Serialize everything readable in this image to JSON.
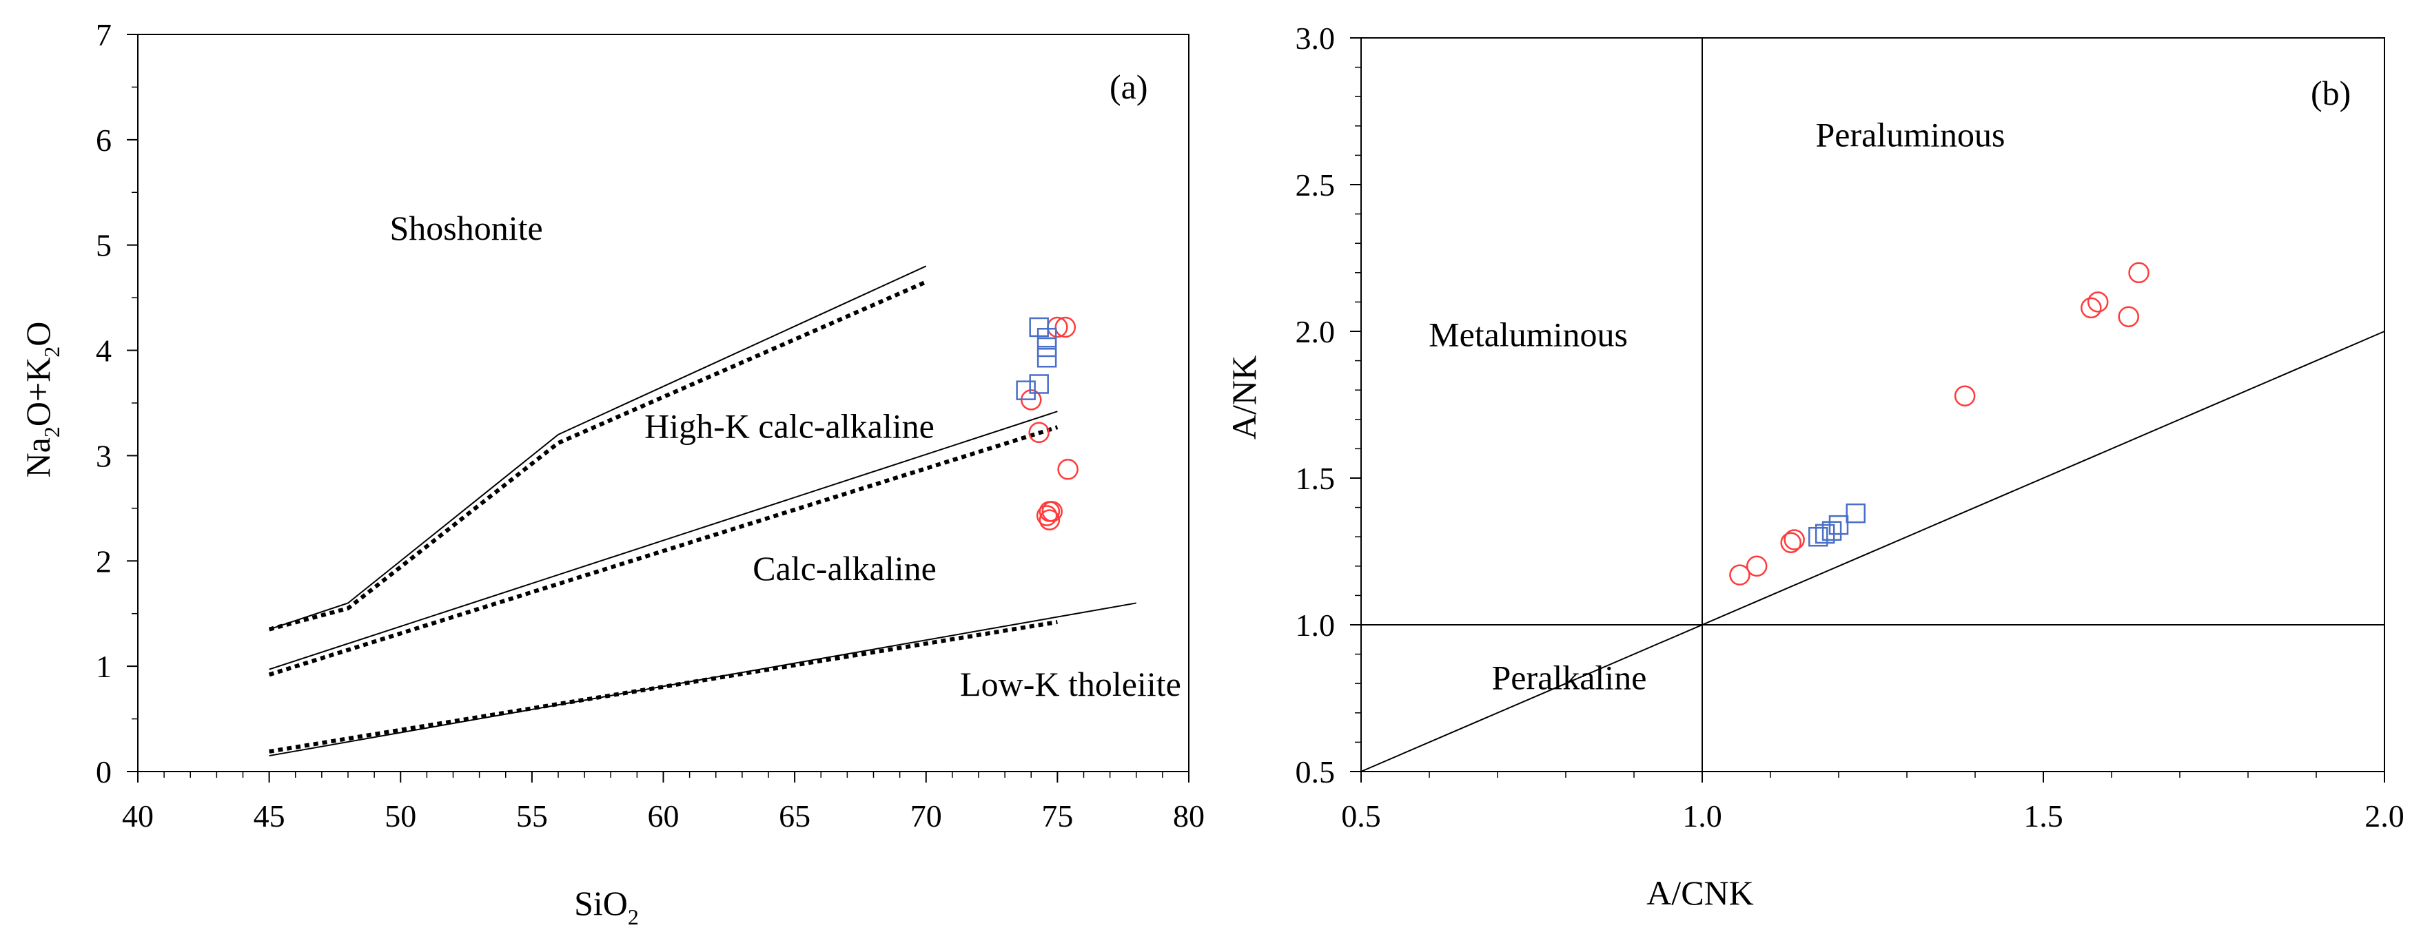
{
  "colors": {
    "axis": "#000000",
    "circle_series": "#ff3b3b",
    "square_series": "#4a6fc7"
  },
  "chart_data": [
    {
      "type": "scatter",
      "panel": "(a)",
      "xlabel": "SiO",
      "xlabel_sub": "2",
      "ylabel_parts": [
        "Na",
        "2",
        "O+K",
        "2",
        "O"
      ],
      "xlim": [
        40,
        80
      ],
      "ylim": [
        0,
        7
      ],
      "xticks": [
        40,
        45,
        50,
        55,
        60,
        65,
        70,
        75,
        80
      ],
      "yticks": [
        0,
        1,
        2,
        3,
        4,
        5,
        6,
        7
      ],
      "tick_labels_x": [
        "40",
        "45",
        "50",
        "55",
        "60",
        "65",
        "70",
        "75",
        "80"
      ],
      "tick_labels_y": [
        "0",
        "1",
        "2",
        "3",
        "4",
        "5",
        "6",
        "7"
      ],
      "grid": false,
      "region_labels": [
        {
          "text": "Shoshonite",
          "x": 52.5,
          "y": 5.05
        },
        {
          "text": "High-K calc-alkaline",
          "x": 64.8,
          "y": 3.17
        },
        {
          "text": "Calc-alkaline",
          "x": 66.9,
          "y": 1.82
        },
        {
          "text": "Low-K tholeiite",
          "x": 75.5,
          "y": 0.72
        }
      ],
      "boundary_lines": [
        {
          "style": "solid",
          "points": [
            [
              45,
              1.35
            ],
            [
              48,
              1.6
            ],
            [
              56,
              3.2
            ],
            [
              70,
              4.8
            ]
          ]
        },
        {
          "style": "dotted",
          "points": [
            [
              45,
              1.35
            ],
            [
              48,
              1.55
            ],
            [
              56,
              3.12
            ],
            [
              70,
              4.65
            ]
          ]
        },
        {
          "style": "solid",
          "points": [
            [
              45,
              0.97
            ],
            [
              75,
              3.42
            ]
          ]
        },
        {
          "style": "dotted",
          "points": [
            [
              45,
              0.92
            ],
            [
              75,
              3.27
            ]
          ]
        },
        {
          "style": "solid",
          "points": [
            [
              45,
              0.15
            ],
            [
              78,
              1.6
            ]
          ]
        },
        {
          "style": "dotted",
          "points": [
            [
              45,
              0.19
            ],
            [
              75,
              1.42
            ]
          ]
        }
      ],
      "series": [
        {
          "name": "circles",
          "marker": "circle",
          "x": [
            74.0,
            74.3,
            75.0,
            75.3,
            75.4,
            74.6,
            74.7,
            74.8,
            74.7
          ],
          "y": [
            3.53,
            3.22,
            4.22,
            4.22,
            2.87,
            2.43,
            2.47,
            2.47,
            2.39
          ]
        },
        {
          "name": "squares",
          "marker": "square",
          "x": [
            73.8,
            74.3,
            74.6,
            74.6,
            74.6,
            74.3
          ],
          "y": [
            3.62,
            3.68,
            3.93,
            4.03,
            4.12,
            4.22
          ]
        }
      ]
    },
    {
      "type": "scatter",
      "panel": "(b)",
      "xlabel": "A/CNK",
      "ylabel": "A/NK",
      "xlim": [
        0.5,
        2.0
      ],
      "ylim": [
        0.5,
        3.0
      ],
      "xticks": [
        0.5,
        1.0,
        1.5,
        2.0
      ],
      "yticks": [
        0.5,
        1.0,
        1.5,
        2.0,
        2.5,
        3.0
      ],
      "tick_labels_x": [
        "0.5",
        "1.0",
        "1.5",
        "2.0"
      ],
      "tick_labels_y": [
        "0.5",
        "1.0",
        "1.5",
        "2.0",
        "2.5",
        "3.0"
      ],
      "grid": false,
      "region_labels": [
        {
          "text": "Peraluminous",
          "x": 1.305,
          "y": 2.63
        },
        {
          "text": "Metaluminous",
          "x": 0.745,
          "y": 1.95
        },
        {
          "text": "Peralkaline",
          "x": 0.805,
          "y": 0.78
        }
      ],
      "boundary_lines": [
        {
          "style": "solid",
          "points": [
            [
              1.0,
              0.5
            ],
            [
              1.0,
              3.0
            ]
          ]
        },
        {
          "style": "solid",
          "points": [
            [
              0.5,
              1.0
            ],
            [
              2.0,
              1.0
            ]
          ]
        },
        {
          "style": "solid",
          "points": [
            [
              0.5,
              0.5
            ],
            [
              2.0,
              2.0
            ]
          ]
        }
      ],
      "series": [
        {
          "name": "circles",
          "marker": "circle",
          "x": [
            1.055,
            1.08,
            1.13,
            1.135,
            1.385,
            1.57,
            1.58,
            1.625,
            1.64
          ],
          "y": [
            1.17,
            1.2,
            1.28,
            1.29,
            1.78,
            2.08,
            2.1,
            2.05,
            2.2
          ]
        },
        {
          "name": "squares",
          "marker": "square",
          "x": [
            1.17,
            1.18,
            1.19,
            1.2,
            1.225
          ],
          "y": [
            1.3,
            1.31,
            1.32,
            1.34,
            1.38
          ]
        }
      ]
    }
  ]
}
